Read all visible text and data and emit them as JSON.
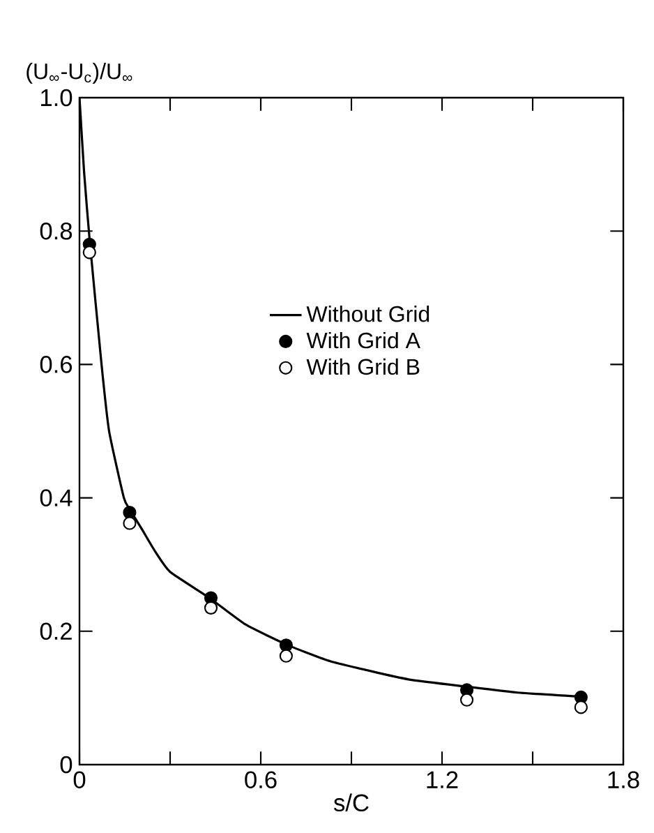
{
  "chart_data": {
    "type": "line",
    "xlabel": "s/C",
    "ylabel": "(U$_{∞}$-U$_{c}$)/U$_{∞}$",
    "xlim": [
      0,
      1.8
    ],
    "ylim": [
      0,
      1
    ],
    "xticks": [
      0,
      {
        "value": 0.3,
        "label": null
      },
      0.6,
      {
        "value": 0.9,
        "label": null
      },
      1.2,
      {
        "value": 1.5,
        "label": null
      },
      1.8
    ],
    "yticks": [
      0,
      0.2,
      0.4,
      0.6,
      0.8,
      {
        "value": 1,
        "label": "1.0"
      }
    ],
    "legend": "center",
    "series": [
      {
        "name": "Without Grid",
        "marker": "none",
        "line_style": "solid",
        "color": "#000000",
        "x": [
          0,
          0.015,
          0.033,
          0.073,
          0.098,
          0.147,
          0.166,
          0.204,
          0.25,
          0.3,
          0.43,
          0.55,
          0.69,
          0.83,
          0.985,
          1.1,
          1.28,
          1.45,
          1.66
        ],
        "values": [
          1.0,
          0.89,
          0.79,
          0.6,
          0.5,
          0.4,
          0.383,
          0.355,
          0.32,
          0.289,
          0.25,
          0.21,
          0.179,
          0.155,
          0.138,
          0.127,
          0.117,
          0.108,
          0.102
        ]
      },
      {
        "name": "With Grid A",
        "type": "scatter",
        "marker": "circle",
        "color": "#000000",
        "x": [
          0.033,
          0.166,
          0.435,
          0.684,
          1.282,
          1.66
        ],
        "values": [
          0.78,
          0.378,
          0.25,
          0.179,
          0.112,
          0.101
        ]
      },
      {
        "name": "With Grid B",
        "type": "scatter",
        "marker": "circle",
        "color": "#ffffff",
        "x": [
          0.033,
          0.166,
          0.435,
          0.684,
          1.282,
          1.66
        ],
        "values": [
          0.768,
          0.362,
          0.235,
          0.163,
          0.097,
          0.086
        ]
      }
    ]
  }
}
